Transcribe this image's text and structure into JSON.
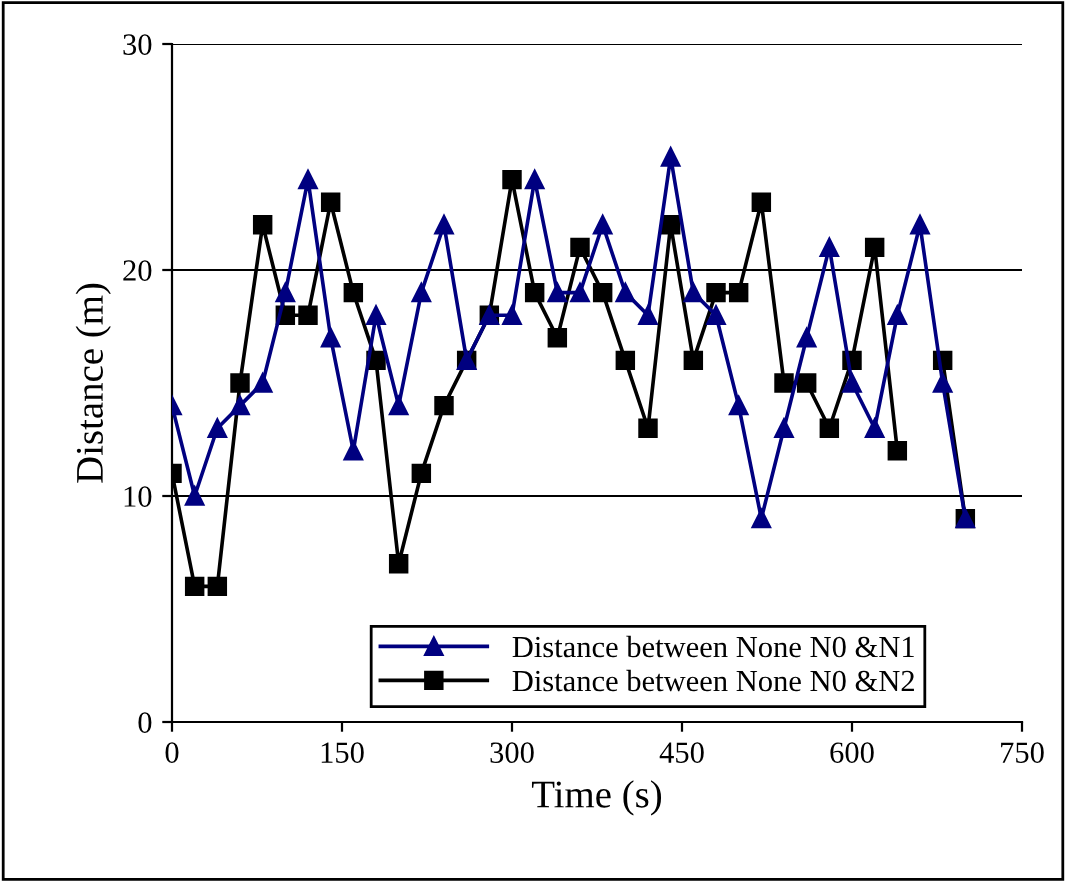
{
  "chart_data": {
    "type": "line",
    "xlabel": "Time (s)",
    "ylabel": "Distance (m)",
    "x": [
      0,
      20,
      40,
      60,
      80,
      100,
      120,
      140,
      160,
      180,
      200,
      220,
      240,
      260,
      280,
      300,
      320,
      340,
      360,
      380,
      400,
      420,
      440,
      460,
      480,
      500,
      520,
      540,
      560,
      580,
      600,
      620,
      640,
      660,
      680,
      700
    ],
    "series": [
      {
        "name": "Distance between None N0 &N1",
        "color": "#000080",
        "marker": "triangle",
        "values": [
          14,
          10,
          13,
          14,
          15,
          19,
          24,
          17,
          12,
          18,
          14,
          19,
          22,
          16,
          18,
          18,
          24,
          19,
          19,
          22,
          19,
          18,
          25,
          19,
          18,
          14,
          9,
          13,
          17,
          21,
          15,
          13,
          18,
          22,
          15,
          9
        ]
      },
      {
        "name": "Distance between None N0 &N2",
        "color": "#000000",
        "marker": "square",
        "values": [
          11,
          6,
          6,
          15,
          22,
          18,
          18,
          23,
          19,
          16,
          7,
          11,
          14,
          16,
          18,
          24,
          19,
          17,
          21,
          19,
          16,
          13,
          22,
          16,
          19,
          19,
          23,
          15,
          15,
          13,
          16,
          21,
          12,
          null,
          16,
          9
        ]
      }
    ],
    "xlim": [
      0,
      750
    ],
    "xticks": [
      0,
      150,
      300,
      450,
      600,
      750
    ],
    "ylim": [
      0,
      30
    ],
    "yticks": [
      0,
      10,
      20,
      30
    ],
    "grid": "y",
    "legend": "bottom",
    "line_style": "solid"
  }
}
